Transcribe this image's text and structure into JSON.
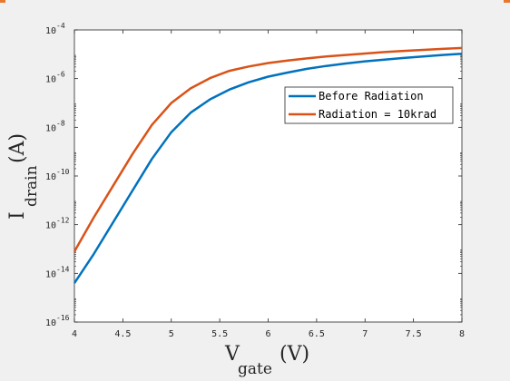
{
  "chart_data": {
    "type": "line",
    "xlabel": "V",
    "xlabel_subscript": "gate",
    "xlabel_unit": "(V)",
    "ylabel": "I",
    "ylabel_subscript": "drain",
    "ylabel_unit": "(A)",
    "xlim": [
      4,
      8
    ],
    "ylim_log10": [
      -16,
      -4
    ],
    "yscale": "log",
    "xticks": [
      "4",
      "4.5",
      "5",
      "5.5",
      "6",
      "6.5",
      "7",
      "7.5",
      "8"
    ],
    "yticks": [
      {
        "exp": -16,
        "base": "10",
        "power": "-16"
      },
      {
        "exp": -14,
        "base": "10",
        "power": "-14"
      },
      {
        "exp": -12,
        "base": "10",
        "power": "-12"
      },
      {
        "exp": -10,
        "base": "10",
        "power": "-10"
      },
      {
        "exp": -8,
        "base": "10",
        "power": "-8"
      },
      {
        "exp": -6,
        "base": "10",
        "power": "-6"
      },
      {
        "exp": -4,
        "base": "10",
        "power": "-4"
      }
    ],
    "grid": false,
    "legend_position": "top-right",
    "x": [
      4.0,
      4.2,
      4.4,
      4.6,
      4.8,
      5.0,
      5.2,
      5.4,
      5.6,
      5.8,
      6.0,
      6.2,
      6.4,
      6.6,
      6.8,
      7.0,
      7.2,
      7.4,
      7.6,
      7.8,
      8.0
    ],
    "series": [
      {
        "name": "Before Radiation",
        "color": "#0072bd",
        "log10_values": [
          -14.4,
          -13.2,
          -11.9,
          -10.6,
          -9.3,
          -8.2,
          -7.4,
          -6.85,
          -6.45,
          -6.15,
          -5.92,
          -5.75,
          -5.6,
          -5.48,
          -5.38,
          -5.29,
          -5.22,
          -5.15,
          -5.09,
          -5.03,
          -4.98
        ]
      },
      {
        "name": "Radiation = 10krad",
        "color": "#d95319",
        "log10_values": [
          -13.1,
          -11.7,
          -10.4,
          -9.1,
          -7.9,
          -7.0,
          -6.4,
          -5.98,
          -5.68,
          -5.5,
          -5.36,
          -5.26,
          -5.17,
          -5.09,
          -5.03,
          -4.97,
          -4.91,
          -4.86,
          -4.82,
          -4.78,
          -4.74
        ]
      }
    ]
  }
}
